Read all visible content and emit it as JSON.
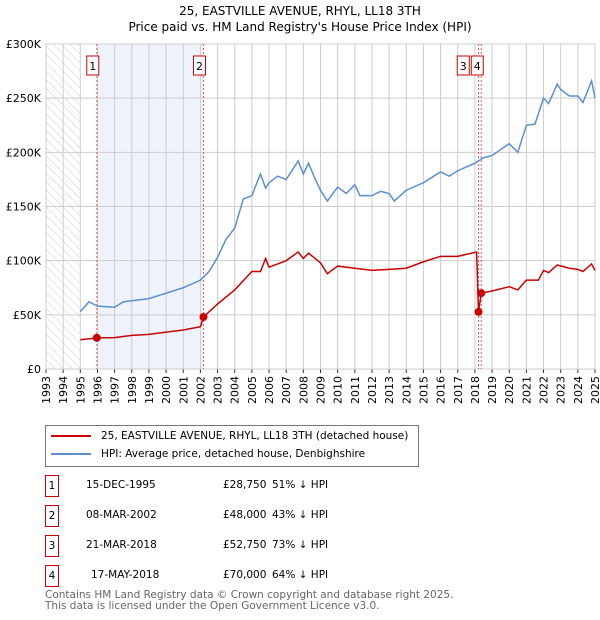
{
  "chart_data": {
    "type": "line",
    "title": "25, EASTVILLE AVENUE, RHYL, LL18 3TH",
    "subtitle": "Price paid vs. HM Land Registry's House Price Index (HPI)",
    "xlim": [
      1993,
      2025
    ],
    "ylim": [
      0,
      300000
    ],
    "x_ticks": [
      "1993",
      "1994",
      "1995",
      "1996",
      "1997",
      "1998",
      "1999",
      "2000",
      "2001",
      "2002",
      "2003",
      "2004",
      "2005",
      "2006",
      "2007",
      "2008",
      "2009",
      "2010",
      "2011",
      "2012",
      "2013",
      "2014",
      "2015",
      "2016",
      "2017",
      "2018",
      "2019",
      "2020",
      "2021",
      "2022",
      "2023",
      "2024",
      "2025"
    ],
    "y_ticks": [
      {
        "v": 0,
        "label": "£0"
      },
      {
        "v": 50000,
        "label": "£50K"
      },
      {
        "v": 100000,
        "label": "£100K"
      },
      {
        "v": 150000,
        "label": "£150K"
      },
      {
        "v": 200000,
        "label": "£200K"
      },
      {
        "v": 250000,
        "label": "£250K"
      },
      {
        "v": 300000,
        "label": "£300K"
      }
    ],
    "grid": true,
    "series": [
      {
        "name": "25, EASTVILLE AVENUE, RHYL, LL18 3TH (detached house)",
        "color": "#cc0000",
        "points": [
          [
            1995,
            27000
          ],
          [
            1995.96,
            28750
          ],
          [
            1997,
            29000
          ],
          [
            1998,
            31000
          ],
          [
            1999,
            32000
          ],
          [
            2000,
            34000
          ],
          [
            2001,
            36000
          ],
          [
            2002,
            39000
          ],
          [
            2002.18,
            48000
          ],
          [
            2003,
            60000
          ],
          [
            2004,
            73000
          ],
          [
            2005,
            90000
          ],
          [
            2005.5,
            90000
          ],
          [
            2005.8,
            102000
          ],
          [
            2006,
            94000
          ],
          [
            2007,
            100000
          ],
          [
            2007.7,
            108000
          ],
          [
            2008,
            102000
          ],
          [
            2008.3,
            107000
          ],
          [
            2009,
            98000
          ],
          [
            2009.4,
            88000
          ],
          [
            2010,
            95000
          ],
          [
            2011,
            93000
          ],
          [
            2012,
            91000
          ],
          [
            2013,
            92000
          ],
          [
            2014,
            93000
          ],
          [
            2015,
            99000
          ],
          [
            2016,
            104000
          ],
          [
            2017,
            104000
          ],
          [
            2018.1,
            108000
          ],
          [
            2018.21,
            52750
          ],
          [
            2018.37,
            70000
          ],
          [
            2019,
            72000
          ],
          [
            2020,
            76000
          ],
          [
            2020.5,
            73000
          ],
          [
            2021,
            82000
          ],
          [
            2021.7,
            82000
          ],
          [
            2022,
            91000
          ],
          [
            2022.3,
            89000
          ],
          [
            2022.8,
            96000
          ],
          [
            2023.5,
            93000
          ],
          [
            2024,
            92000
          ],
          [
            2024.3,
            90000
          ],
          [
            2024.8,
            97000
          ],
          [
            2025,
            91000
          ]
        ]
      },
      {
        "name": "HPI: Average price, detached house, Denbighshire",
        "color": "#5b8fd0",
        "points": [
          [
            1995,
            53000
          ],
          [
            1995.5,
            62000
          ],
          [
            1996,
            58000
          ],
          [
            1997,
            57000
          ],
          [
            1997.5,
            62000
          ],
          [
            1998,
            63000
          ],
          [
            1999,
            65000
          ],
          [
            2000,
            70000
          ],
          [
            2001,
            75000
          ],
          [
            2002,
            82000
          ],
          [
            2002.5,
            90000
          ],
          [
            2003,
            103000
          ],
          [
            2003.5,
            120000
          ],
          [
            2004,
            130000
          ],
          [
            2004.5,
            157000
          ],
          [
            2005,
            160000
          ],
          [
            2005.5,
            180000
          ],
          [
            2005.8,
            167000
          ],
          [
            2006,
            172000
          ],
          [
            2006.5,
            178000
          ],
          [
            2007,
            175000
          ],
          [
            2007.7,
            192000
          ],
          [
            2008,
            180000
          ],
          [
            2008.3,
            190000
          ],
          [
            2008.7,
            175000
          ],
          [
            2009,
            165000
          ],
          [
            2009.4,
            155000
          ],
          [
            2010,
            168000
          ],
          [
            2010.5,
            162000
          ],
          [
            2011,
            170000
          ],
          [
            2011.3,
            160000
          ],
          [
            2012,
            160000
          ],
          [
            2012.5,
            164000
          ],
          [
            2013,
            162000
          ],
          [
            2013.3,
            155000
          ],
          [
            2014,
            165000
          ],
          [
            2015,
            172000
          ],
          [
            2016,
            182000
          ],
          [
            2016.5,
            178000
          ],
          [
            2017,
            183000
          ],
          [
            2018,
            190000
          ],
          [
            2018.5,
            195000
          ],
          [
            2019,
            197000
          ],
          [
            2020,
            208000
          ],
          [
            2020.5,
            200000
          ],
          [
            2021,
            225000
          ],
          [
            2021.5,
            226000
          ],
          [
            2022,
            250000
          ],
          [
            2022.3,
            245000
          ],
          [
            2022.8,
            263000
          ],
          [
            2023,
            258000
          ],
          [
            2023.5,
            252000
          ],
          [
            2024,
            252000
          ],
          [
            2024.3,
            246000
          ],
          [
            2024.8,
            266000
          ],
          [
            2025,
            250000
          ]
        ]
      }
    ],
    "sales": [
      {
        "id": "1",
        "x": 1995.96,
        "y": 28750,
        "date": "15-DEC-1995",
        "price": "£28,750",
        "hpi": "51% ↓ HPI"
      },
      {
        "id": "2",
        "x": 2002.18,
        "y": 48000,
        "date": "08-MAR-2002",
        "price": "£48,000",
        "hpi": "43% ↓ HPI"
      },
      {
        "id": "3",
        "x": 2018.21,
        "y": 52750,
        "date": "21-MAR-2018",
        "price": "£52,750",
        "hpi": "73% ↓ HPI"
      },
      {
        "id": "4",
        "x": 2018.37,
        "y": 70000,
        "date": "17-MAY-2018",
        "price": "£70,000",
        "hpi": "64% ↓ HPI"
      }
    ],
    "hatched_range": [
      1993,
      1995
    ],
    "shaded_range": [
      1995.96,
      2002.18
    ]
  },
  "footer": {
    "line1": "Contains HM Land Registry data © Crown copyright and database right 2025.",
    "line2": "This data is licensed under the Open Government Licence v3.0."
  }
}
